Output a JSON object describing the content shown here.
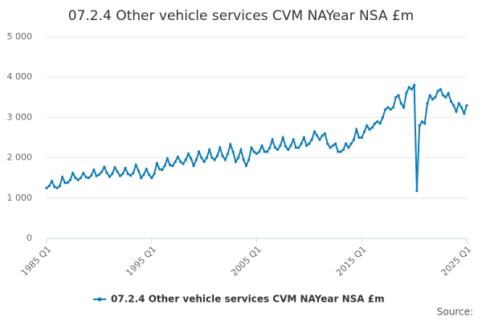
{
  "chart_data": {
    "type": "line",
    "title": "07.2.4 Other vehicle services CVM NAYear NSA £m",
    "source": "Source:",
    "categories": [
      "1985 Q1",
      null,
      null,
      null,
      null,
      null,
      null,
      null,
      null,
      null,
      null,
      null,
      null,
      null,
      null,
      null,
      null,
      null,
      null,
      null,
      null,
      null,
      null,
      null,
      null,
      null,
      null,
      null,
      null,
      null,
      null,
      null,
      null,
      null,
      null,
      null,
      null,
      null,
      null,
      null,
      "1995 Q1",
      null,
      null,
      null,
      null,
      null,
      null,
      null,
      null,
      null,
      null,
      null,
      null,
      null,
      null,
      null,
      null,
      null,
      null,
      null,
      null,
      null,
      null,
      null,
      null,
      null,
      null,
      null,
      null,
      null,
      null,
      null,
      null,
      null,
      null,
      null,
      null,
      null,
      null,
      null,
      "2005 Q1",
      null,
      null,
      null,
      null,
      null,
      null,
      null,
      null,
      null,
      null,
      null,
      null,
      null,
      null,
      null,
      null,
      null,
      null,
      null,
      null,
      null,
      null,
      null,
      null,
      null,
      null,
      null,
      null,
      null,
      null,
      null,
      null,
      null,
      null,
      null,
      null,
      null,
      null,
      null,
      "2015 Q1",
      null,
      null,
      null,
      null,
      null,
      null,
      null,
      null,
      null,
      null,
      null,
      null,
      null,
      null,
      null,
      null,
      null,
      null,
      null,
      null,
      null,
      null,
      null,
      null,
      null,
      null,
      null,
      null,
      null,
      null,
      null,
      null,
      null,
      null,
      null,
      null,
      null,
      null,
      null,
      "2025 Q1"
    ],
    "series": [
      {
        "name": "07.2.4 Other vehicle services CVM NAYear NSA £m",
        "color": "#0f7cb6",
        "values": [
          1250,
          1300,
          1420,
          1280,
          1250,
          1300,
          1520,
          1380,
          1380,
          1450,
          1620,
          1500,
          1450,
          1500,
          1620,
          1520,
          1500,
          1560,
          1700,
          1550,
          1580,
          1650,
          1770,
          1620,
          1530,
          1600,
          1760,
          1650,
          1550,
          1600,
          1740,
          1600,
          1560,
          1620,
          1820,
          1680,
          1500,
          1580,
          1720,
          1580,
          1500,
          1600,
          1860,
          1720,
          1700,
          1800,
          1980,
          1820,
          1800,
          1900,
          2020,
          1900,
          1850,
          1950,
          2100,
          1980,
          1800,
          1950,
          2150,
          2000,
          1900,
          2000,
          2200,
          2000,
          1950,
          2050,
          2250,
          2050,
          1950,
          2100,
          2330,
          2150,
          1900,
          2000,
          2200,
          1950,
          1800,
          1950,
          2250,
          2150,
          2100,
          2150,
          2300,
          2150,
          2150,
          2250,
          2450,
          2250,
          2200,
          2300,
          2500,
          2280,
          2200,
          2300,
          2450,
          2250,
          2250,
          2350,
          2500,
          2300,
          2350,
          2450,
          2650,
          2550,
          2450,
          2550,
          2600,
          2350,
          2250,
          2300,
          2350,
          2150,
          2150,
          2200,
          2350,
          2250,
          2350,
          2450,
          2700,
          2500,
          2500,
          2650,
          2800,
          2700,
          2750,
          2850,
          2900,
          2850,
          3000,
          3200,
          3250,
          3200,
          3250,
          3500,
          3550,
          3350,
          3250,
          3600,
          3750,
          3700,
          3800,
          1180,
          2800,
          2900,
          2850,
          3350,
          3550,
          3450,
          3500,
          3650,
          3700,
          3550,
          3500,
          3600,
          3400,
          3300,
          3150,
          3350,
          3250,
          3100,
          3300
        ]
      }
    ],
    "ylim": [
      0,
      5000
    ],
    "yticks": [
      0,
      {
        "value": 1000,
        "label": "1 000"
      },
      {
        "value": 2000,
        "label": "2 000"
      },
      {
        "value": 3000,
        "label": "3 000"
      },
      {
        "value": 4000,
        "label": "4 000"
      },
      {
        "value": 5000,
        "label": "5 000"
      }
    ],
    "grid": true
  }
}
